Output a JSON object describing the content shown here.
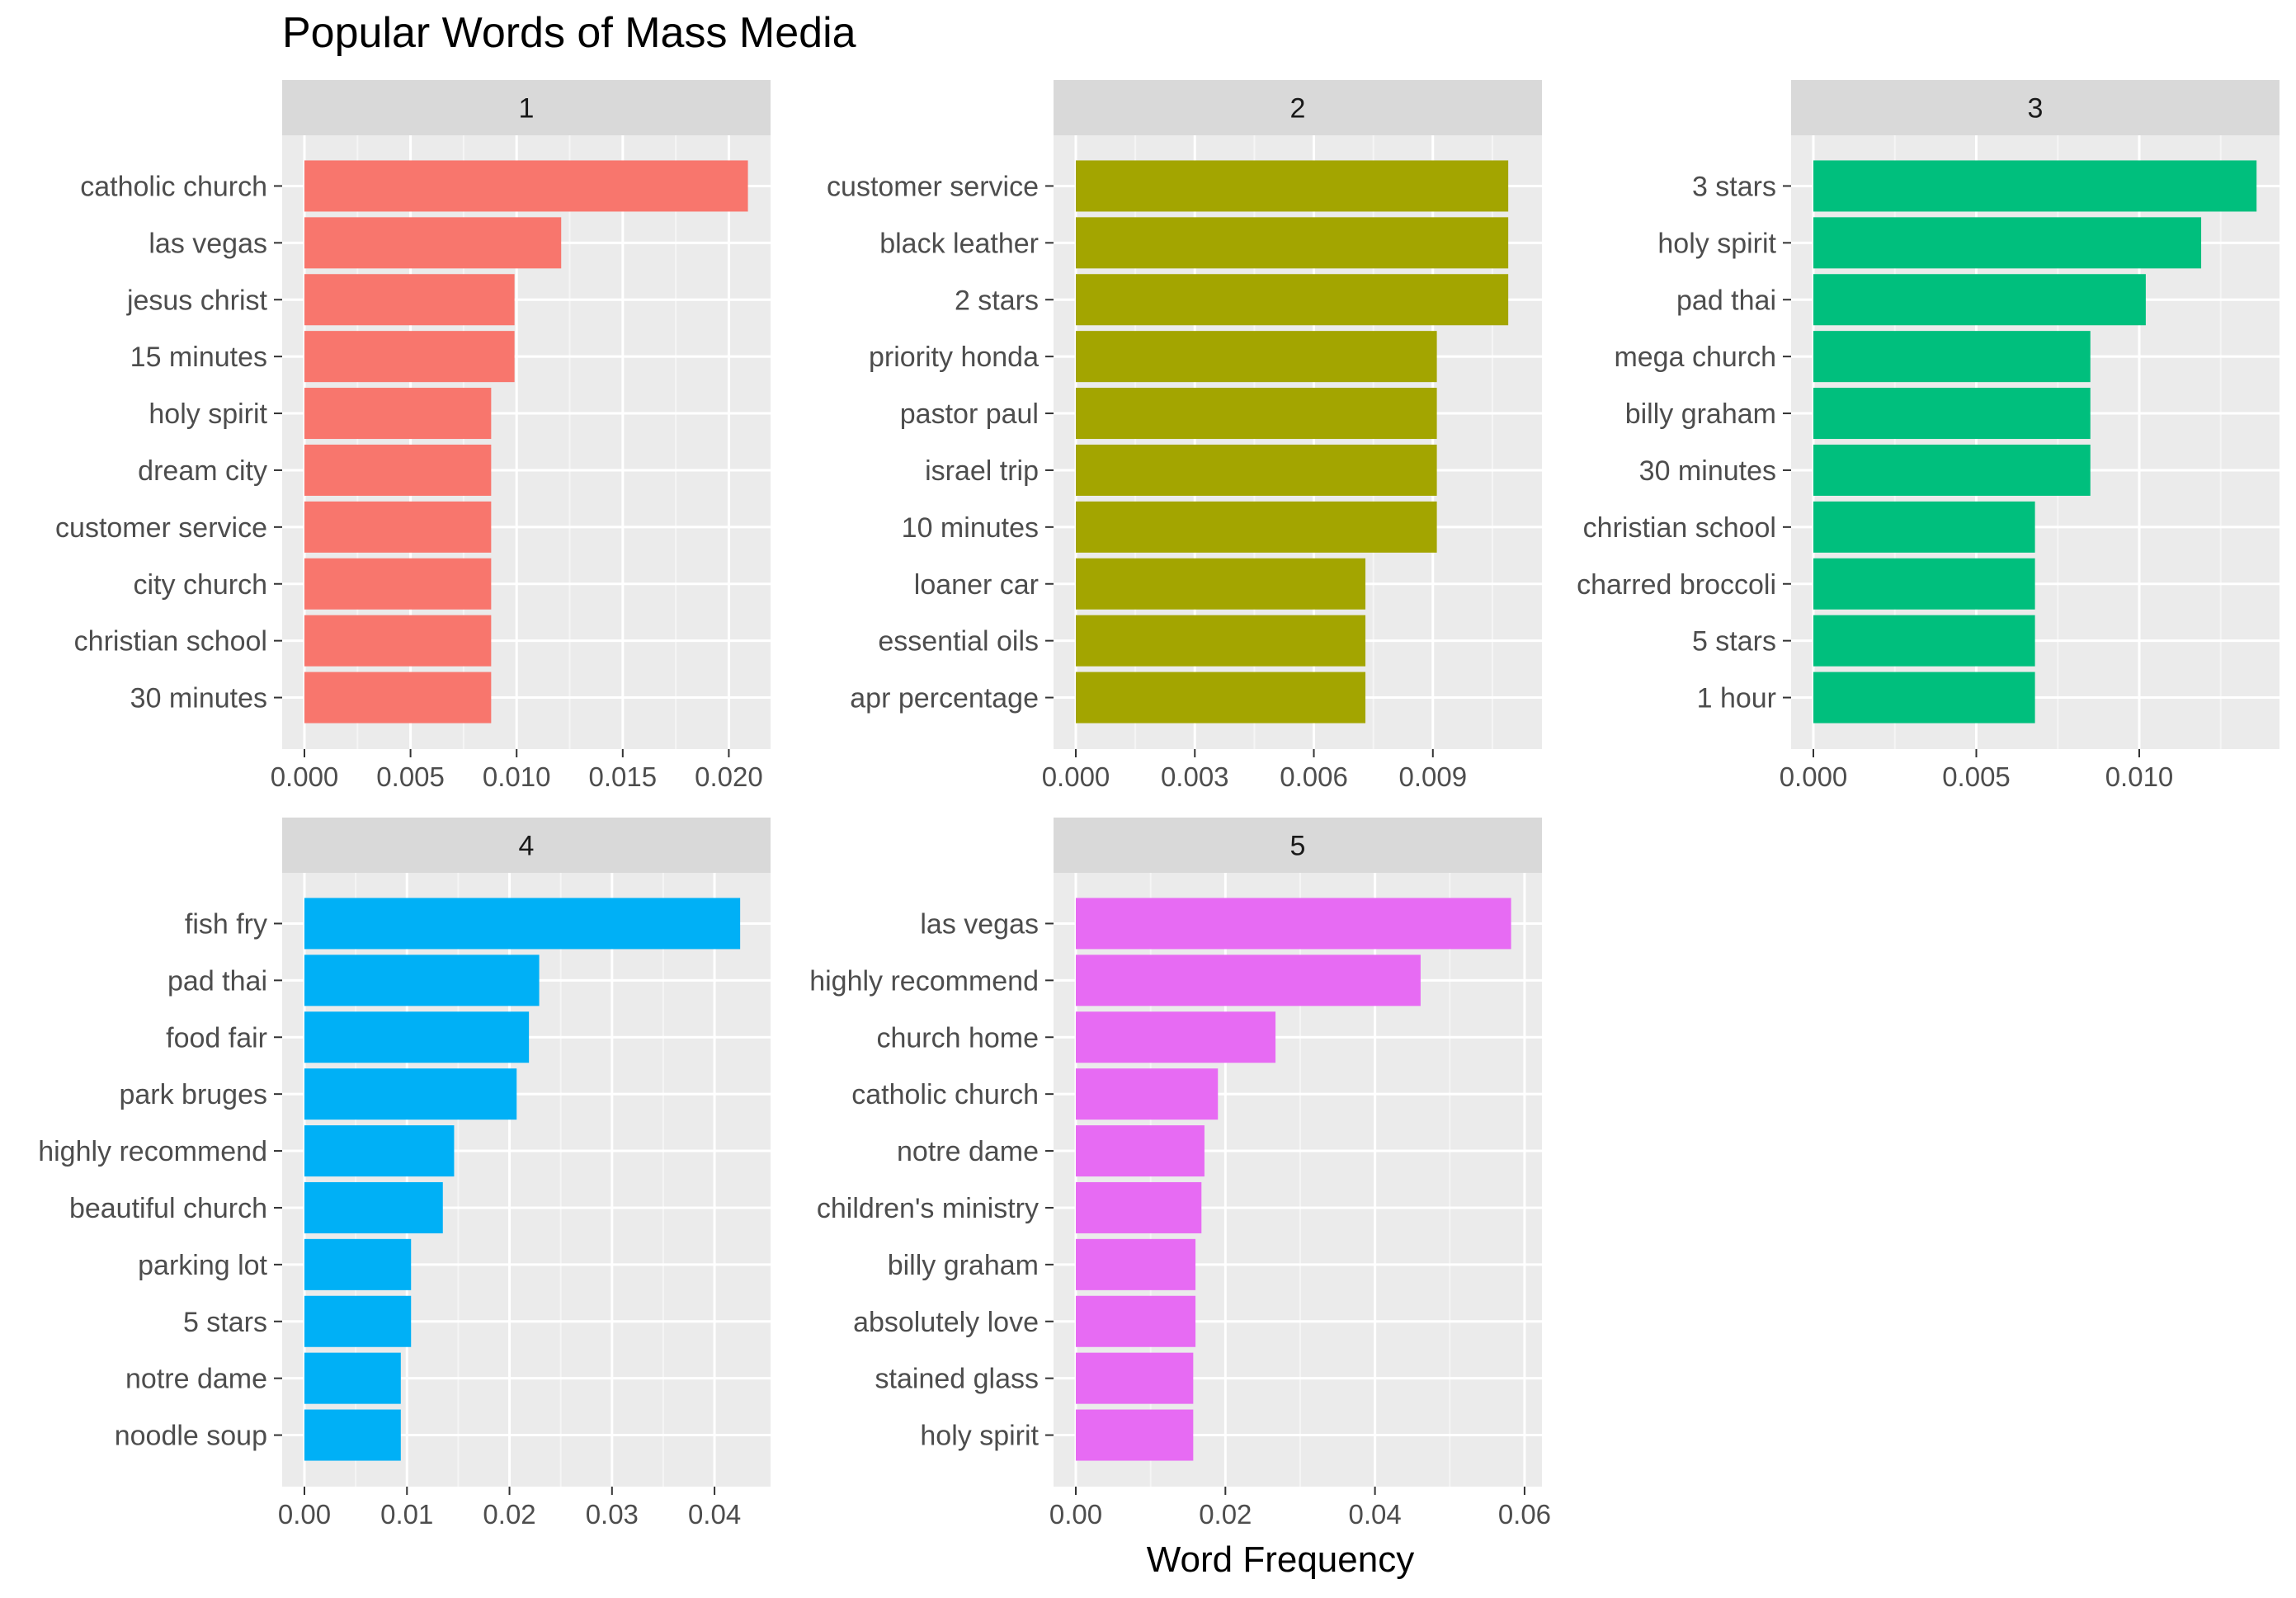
{
  "chart_data": {
    "type": "bar",
    "title": "Popular Words of Mass Media",
    "xlabel": "Word Frequency",
    "ylabel": "",
    "orientation": "horizontal",
    "facets": [
      {
        "label": "1",
        "color": "#F8766D",
        "xlim": [
          0,
          0.0215
        ],
        "ticks": [
          "0.000",
          "0.005",
          "0.010",
          "0.015",
          "0.020"
        ],
        "tick_values": [
          0,
          0.005,
          0.01,
          0.015,
          0.02
        ],
        "categories": [
          "catholic church",
          "las vegas",
          "jesus christ",
          "15 minutes",
          "holy spirit",
          "dream city",
          "customer service",
          "city church",
          "christian school",
          "30 minutes"
        ],
        "values": [
          0.0209,
          0.0121,
          0.0099,
          0.0099,
          0.0088,
          0.0088,
          0.0088,
          0.0088,
          0.0088,
          0.0088
        ]
      },
      {
        "label": "2",
        "color": "#A3A500",
        "xlim": [
          0,
          0.0115
        ],
        "ticks": [
          "0.000",
          "0.003",
          "0.006",
          "0.009"
        ],
        "tick_values": [
          0,
          0.003,
          0.006,
          0.009
        ],
        "categories": [
          "customer service",
          "black leather",
          "2 stars",
          "priority honda",
          "pastor paul",
          "israel trip",
          "10 minutes",
          "loaner car",
          "essential oils",
          "apr percentage"
        ],
        "values": [
          0.0109,
          0.0109,
          0.0109,
          0.0091,
          0.0091,
          0.0091,
          0.0091,
          0.0073,
          0.0073,
          0.0073
        ]
      },
      {
        "label": "3",
        "color": "#00BF7D",
        "xlim": [
          0,
          0.014
        ],
        "ticks": [
          "0.000",
          "0.005",
          "0.010"
        ],
        "tick_values": [
          0,
          0.005,
          0.01
        ],
        "categories": [
          "3 stars",
          "holy spirit",
          "pad thai",
          "mega church",
          "billy graham",
          "30 minutes",
          "christian school",
          "charred broccoli",
          "5 stars",
          "1 hour"
        ],
        "values": [
          0.0136,
          0.0119,
          0.0102,
          0.0085,
          0.0085,
          0.0085,
          0.0068,
          0.0068,
          0.0068,
          0.0068
        ]
      },
      {
        "label": "4",
        "color": "#00B0F6",
        "xlim": [
          0,
          0.0445
        ],
        "ticks": [
          "0.00",
          "0.01",
          "0.02",
          "0.03",
          "0.04"
        ],
        "tick_values": [
          0,
          0.01,
          0.02,
          0.03,
          0.04
        ],
        "categories": [
          "fish fry",
          "pad thai",
          "food fair",
          "park bruges",
          "highly recommend",
          "beautiful church",
          "parking lot",
          "5 stars",
          "notre dame",
          "noodle soup"
        ],
        "values": [
          0.0425,
          0.0229,
          0.0219,
          0.0207,
          0.0146,
          0.0135,
          0.0104,
          0.0104,
          0.0094,
          0.0094
        ]
      },
      {
        "label": "5",
        "color": "#E76BF3",
        "xlim": [
          0,
          0.061
        ],
        "ticks": [
          "0.00",
          "0.02",
          "0.04",
          "0.06"
        ],
        "tick_values": [
          0,
          0.02,
          0.04,
          0.06
        ],
        "categories": [
          "las vegas",
          "highly recommend",
          "church home",
          "catholic church",
          "notre dame",
          "children's ministry",
          "billy graham",
          "absolutely love",
          "stained glass",
          "holy spirit"
        ],
        "values": [
          0.0582,
          0.0461,
          0.0267,
          0.019,
          0.0172,
          0.0168,
          0.016,
          0.016,
          0.0157,
          0.0157
        ]
      }
    ],
    "grid": true,
    "legend": "none"
  }
}
